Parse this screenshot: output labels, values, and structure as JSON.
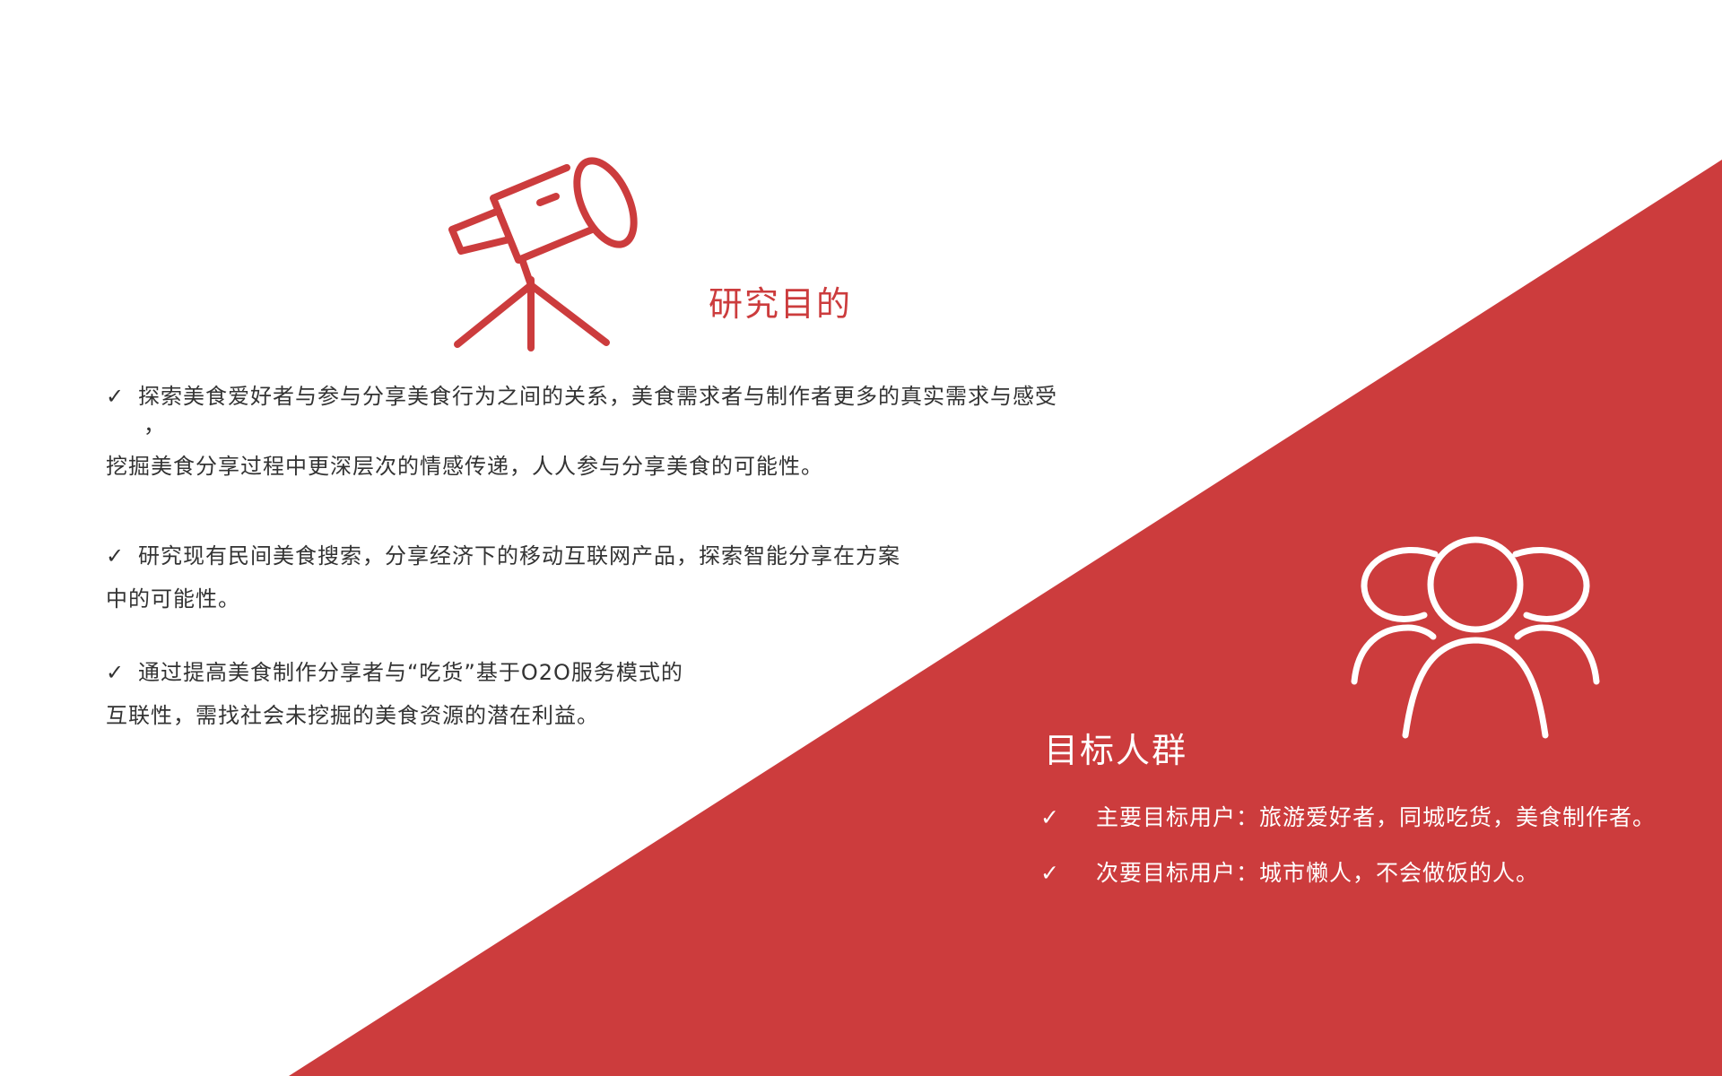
{
  "colors": {
    "accent": "#cc3c3d",
    "background": "#ffffff",
    "body_text": "#333333",
    "inverse_text": "#ffffff"
  },
  "icons": {
    "telescope": "telescope-icon",
    "people": "people-group-icon",
    "check": "checkmark-icon"
  },
  "check_mark": "✓",
  "research": {
    "title": "研究目的",
    "points": [
      {
        "line1": "探索美食爱好者与参与分享美食行为之间的关系，美食需求者与制作者更多的真实需求与感受",
        "line2": "，",
        "line3": "挖掘美食分享过程中更深层次的情感传递，人人参与分享美食的可能性。"
      },
      {
        "line1": "研究现有民间美食搜索，分享经济下的移动互联网产品，探索智能分享在方案",
        "line2": "中的可能性。"
      },
      {
        "line1": "通过提高美食制作分享者与“吃货”基于O2O服务模式的",
        "line2": "互联性，需找社会未挖掘的美食资源的潜在利益。"
      }
    ]
  },
  "target": {
    "title": "目标人群",
    "items": [
      "主要目标用户：旅游爱好者，同城吃货，美食制作者。",
      "次要目标用户：城市懒人，不会做饭的人。"
    ]
  }
}
